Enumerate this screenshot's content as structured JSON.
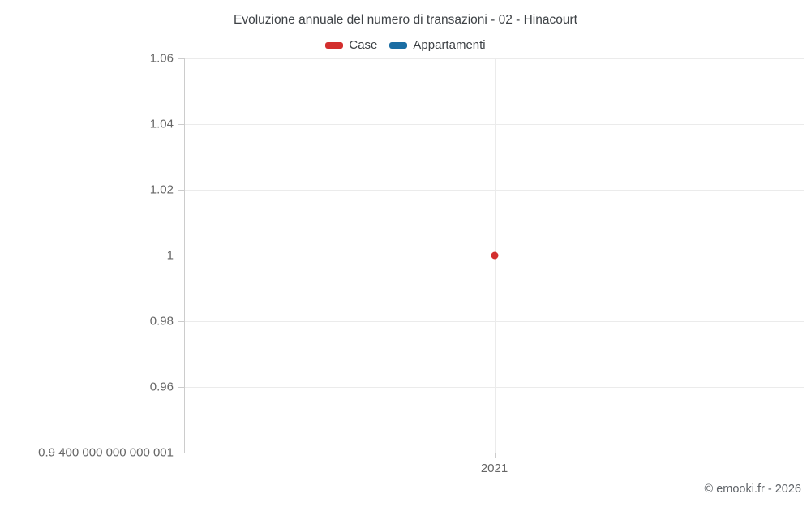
{
  "chart_data": {
    "type": "line",
    "title": "Evoluzione annuale del numero di transazioni - 02 - Hinacourt",
    "categories": [
      "2021"
    ],
    "series": [
      {
        "name": "Case",
        "color": "#d32f2e",
        "values": [
          1
        ]
      },
      {
        "name": "Appartamenti",
        "color": "#1a6da3",
        "values": [
          null
        ]
      }
    ],
    "ylim": [
      0.9400000000000001,
      1.06
    ],
    "ytick_values": [
      1.06,
      1.04,
      1.02,
      1,
      0.98,
      0.96,
      0.9400000000000001
    ],
    "ytick_labels": [
      "1.06",
      "1.04",
      "1.02",
      "1",
      "0.98",
      "0.96",
      "0.9 400 000 000 000 001"
    ],
    "xlabel": "",
    "ylabel": "",
    "grid": true,
    "legend_position": "top"
  },
  "footer": {
    "copyright": "© emooki.fr - 2026"
  }
}
